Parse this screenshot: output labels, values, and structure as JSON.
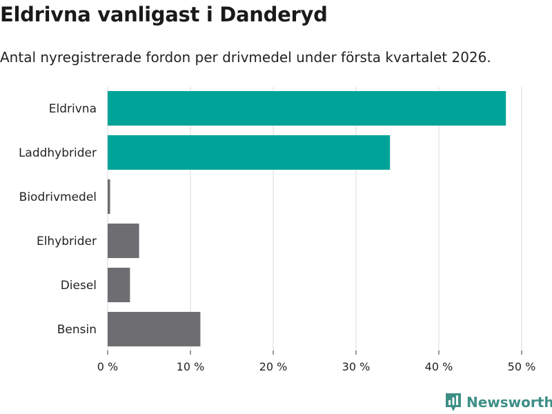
{
  "title": "Eldrivna vanligast i Danderyd",
  "subtitle": "Antal nyregistrerade fordon per drivmedel under första kvartalet 2026.",
  "brand": {
    "name": "Newsworthy"
  },
  "colors": {
    "highlight": "#00a398",
    "default": "#6e6d72",
    "grid": "#d9d9d9",
    "axis": "#333333",
    "brand": "#3e8f86"
  },
  "chart_data": {
    "type": "bar",
    "orientation": "horizontal",
    "title": "Eldrivna vanligast i Danderyd",
    "subtitle": "Antal nyregistrerade fordon per drivmedel under första kvartalet 2026.",
    "categories": [
      "Eldrivna",
      "Laddhybrider",
      "Biodrivmedel",
      "Elhybrider",
      "Diesel",
      "Bensin"
    ],
    "values": [
      48.1,
      34.1,
      0.3,
      3.8,
      2.7,
      11.2
    ],
    "highlight": [
      true,
      true,
      false,
      false,
      false,
      false
    ],
    "xlim": [
      0,
      50
    ],
    "xticks": [
      0,
      10,
      20,
      30,
      40,
      50
    ],
    "xtick_labels": [
      "0 %",
      "10 %",
      "20 %",
      "30 %",
      "40 %",
      "50 %"
    ],
    "xlabel": "",
    "ylabel": "",
    "grid": true
  }
}
